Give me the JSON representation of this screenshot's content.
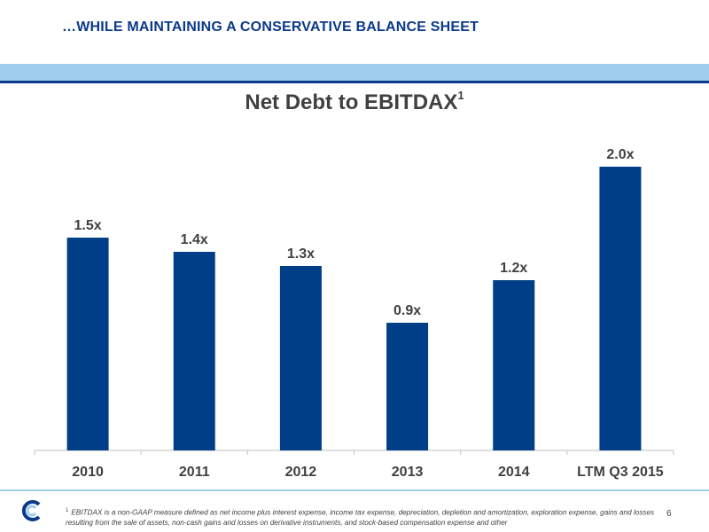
{
  "header": {
    "headline": "…WHILE MAINTAINING A CONSERVATIVE BALANCE SHEET"
  },
  "colors": {
    "bar": "#003f87",
    "accent_band": "#9fcdee",
    "headline": "#0b3a8a",
    "text": "#404040"
  },
  "chart_data": {
    "type": "bar",
    "title": "Net Debt to EBITDAX",
    "title_superscript": "1",
    "categories": [
      "2010",
      "2011",
      "2012",
      "2013",
      "2014",
      "LTM Q3 2015"
    ],
    "values": [
      1.5,
      1.4,
      1.3,
      0.9,
      1.2,
      2.0
    ],
    "data_labels": [
      "1.5x",
      "1.4x",
      "1.3x",
      "0.9x",
      "1.2x",
      "2.0x"
    ],
    "xlabel": "",
    "ylabel": "",
    "ylim": [
      0,
      2.4
    ],
    "grid": false,
    "legend": "none"
  },
  "footnote": {
    "marker": "1",
    "text": "EBITDAX is a non-GAAP measure defined as net income plus interest expense, income tax expense, depreciation, depletion and amortization, exploration expense, gains and losses resulting from the sale of assets, non-cash gains and losses on derivative instruments, and stock-based compensation expense and other"
  },
  "page_number": "6",
  "logo": {
    "icon": "company-logo-icon"
  }
}
